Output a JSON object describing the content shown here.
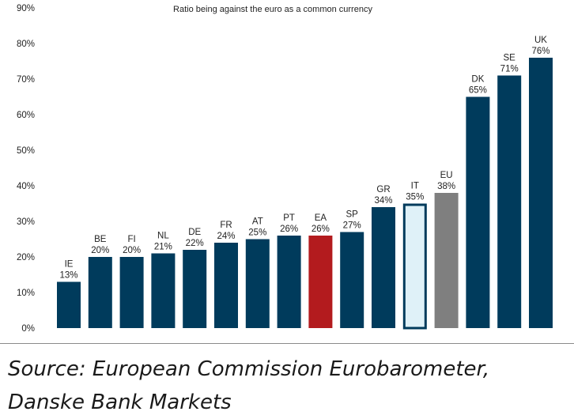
{
  "chart_data": {
    "type": "bar",
    "title": "Ratio being against the euro as a common currency",
    "categories": [
      "IE",
      "BE",
      "FI",
      "NL",
      "DE",
      "FR",
      "AT",
      "PT",
      "EA",
      "SP",
      "GR",
      "IT",
      "EU",
      "DK",
      "SE",
      "UK"
    ],
    "values": [
      13,
      20,
      20,
      21,
      22,
      24,
      25,
      26,
      26,
      27,
      34,
      35,
      38,
      65,
      71,
      76
    ],
    "value_labels": [
      "13%",
      "20%",
      "20%",
      "21%",
      "22%",
      "24%",
      "25%",
      "26%",
      "26%",
      "27%",
      "34%",
      "35%",
      "38%",
      "65%",
      "71%",
      "76%"
    ],
    "ylim": [
      0,
      90
    ],
    "yticks": [
      0,
      10,
      20,
      30,
      40,
      50,
      60,
      70,
      80,
      90
    ],
    "ytick_labels": [
      "0%",
      "10%",
      "20%",
      "30%",
      "40%",
      "50%",
      "60%",
      "70%",
      "80%",
      "90%"
    ],
    "xlabel": "",
    "ylabel": "",
    "grid": false,
    "highlights": {
      "EA": "red-fill",
      "IT": "outlined-light",
      "EU": "grey-fill"
    },
    "colors": {
      "default": "#003b5c",
      "EA": "#b31b1e",
      "IT_fill": "#dff1f8",
      "IT_stroke": "#003b5c",
      "EU": "#7f7f7f"
    }
  },
  "source": {
    "line1": "Source: European Commission Eurobarometer,",
    "line2": "Danske Bank Markets"
  }
}
